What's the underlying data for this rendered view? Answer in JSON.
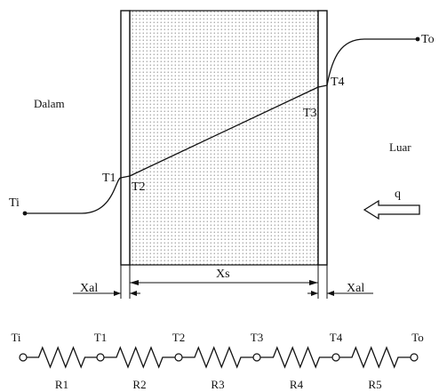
{
  "diagram": {
    "regions": {
      "inside": "Dalam",
      "outside": "Luar"
    },
    "temperatures": {
      "ti": "Ti",
      "t1": "T1",
      "t2": "T2",
      "t3": "T3",
      "t4": "T4",
      "to": "To"
    },
    "heat_flow": "q",
    "dimensions": {
      "xal_left": "Xal",
      "xs": "Xs",
      "xal_right": "Xal"
    }
  },
  "circuit": {
    "nodes": [
      "Ti",
      "T1",
      "T2",
      "T3",
      "T4",
      "To"
    ],
    "resistors": [
      "R1",
      "R2",
      "R3",
      "R4",
      "R5"
    ]
  },
  "colors": {
    "stroke": "#111111",
    "background": "#ffffff",
    "dots": "#555555"
  }
}
